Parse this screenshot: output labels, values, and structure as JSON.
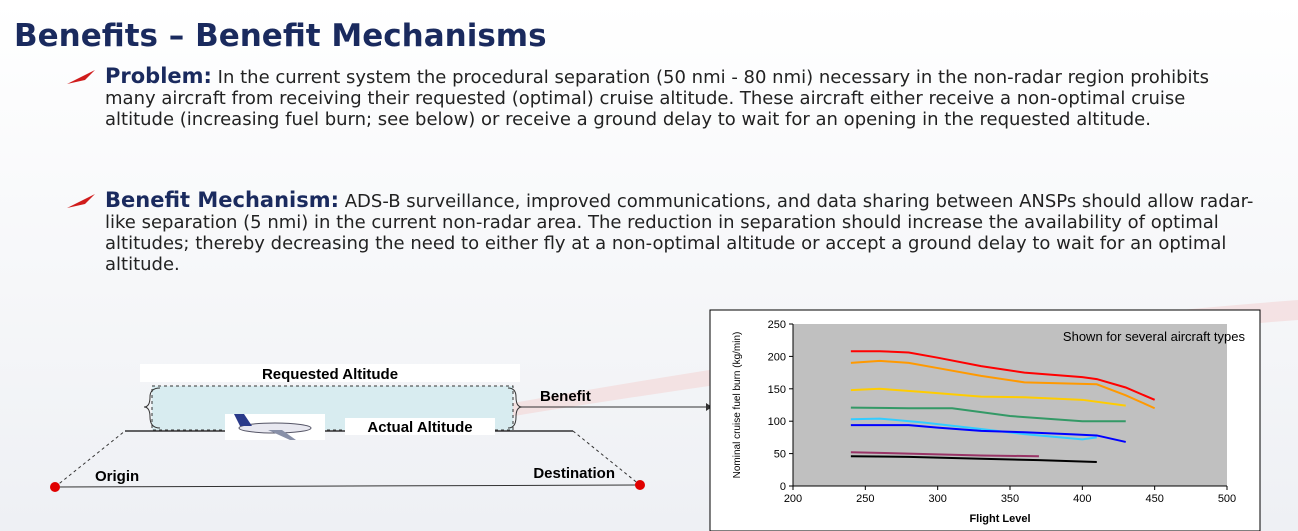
{
  "title": "Benefits – Benefit Mechanisms",
  "bullets": [
    {
      "label": "Problem:",
      "text": "In the current system the procedural separation (50 nmi - 80 nmi) necessary in the non-radar region prohibits many aircraft from receiving their requested (optimal) cruise altitude.  These aircraft either receive a non-optimal cruise altitude (increasing fuel burn; see below) or receive a ground delay to wait for an opening in the requested altitude."
    },
    {
      "label": "Benefit Mechanism:",
      "text": "ADS-B surveillance, improved communications, and data sharing between ANSPs should allow radar-like separation (5 nmi) in the current non-radar area.  The reduction in separation should increase the availability of optimal altitudes; thereby decreasing the need to either fly at a non-optimal altitude or accept a ground delay to wait for an optimal altitude."
    }
  ],
  "diagram": {
    "requested": "Requested Altitude",
    "actual": "Actual Altitude",
    "benefit": "Benefit",
    "origin": "Origin",
    "destination": "Destination"
  },
  "chart_data": {
    "type": "line",
    "annotation": "Shown for several aircraft types",
    "x_label": "Flight Level",
    "y_label": "Nominal cruise fuel burn (kg/min)",
    "xlim": [
      200,
      500
    ],
    "xticks": [
      200,
      250,
      300,
      350,
      400,
      450,
      500
    ],
    "ylim": [
      0,
      250
    ],
    "yticks": [
      0,
      50,
      100,
      150,
      200,
      250
    ],
    "series": [
      {
        "color": "#ff0000",
        "x": [
          240,
          260,
          280,
          300,
          330,
          360,
          400,
          410,
          430,
          450
        ],
        "values": [
          208,
          208,
          206,
          198,
          185,
          175,
          168,
          165,
          152,
          133
        ]
      },
      {
        "color": "#ff9900",
        "x": [
          240,
          260,
          280,
          300,
          330,
          360,
          410,
          430,
          450
        ],
        "values": [
          190,
          193,
          190,
          182,
          170,
          160,
          157,
          140,
          120
        ]
      },
      {
        "color": "#ffcc00",
        "x": [
          240,
          260,
          290,
          330,
          360,
          400,
          430
        ],
        "values": [
          148,
          150,
          145,
          138,
          137,
          133,
          124
        ]
      },
      {
        "color": "#339966",
        "x": [
          240,
          280,
          310,
          350,
          400,
          430
        ],
        "values": [
          121,
          120,
          120,
          108,
          100,
          100
        ]
      },
      {
        "color": "#33ccff",
        "x": [
          240,
          260,
          290,
          330,
          360,
          400,
          410
        ],
        "values": [
          103,
          104,
          98,
          88,
          80,
          72,
          75
        ]
      },
      {
        "color": "#0000ff",
        "x": [
          240,
          280,
          300,
          330,
          360,
          390,
          410,
          430
        ],
        "values": [
          94,
          94,
          90,
          85,
          83,
          80,
          78,
          68
        ]
      },
      {
        "color": "#993366",
        "x": [
          240,
          280,
          330,
          370
        ],
        "values": [
          52,
          50,
          47,
          46
        ]
      },
      {
        "color": "#000000",
        "x": [
          240,
          280,
          330,
          370,
          410
        ],
        "values": [
          46,
          45,
          42,
          40,
          37
        ]
      }
    ]
  }
}
